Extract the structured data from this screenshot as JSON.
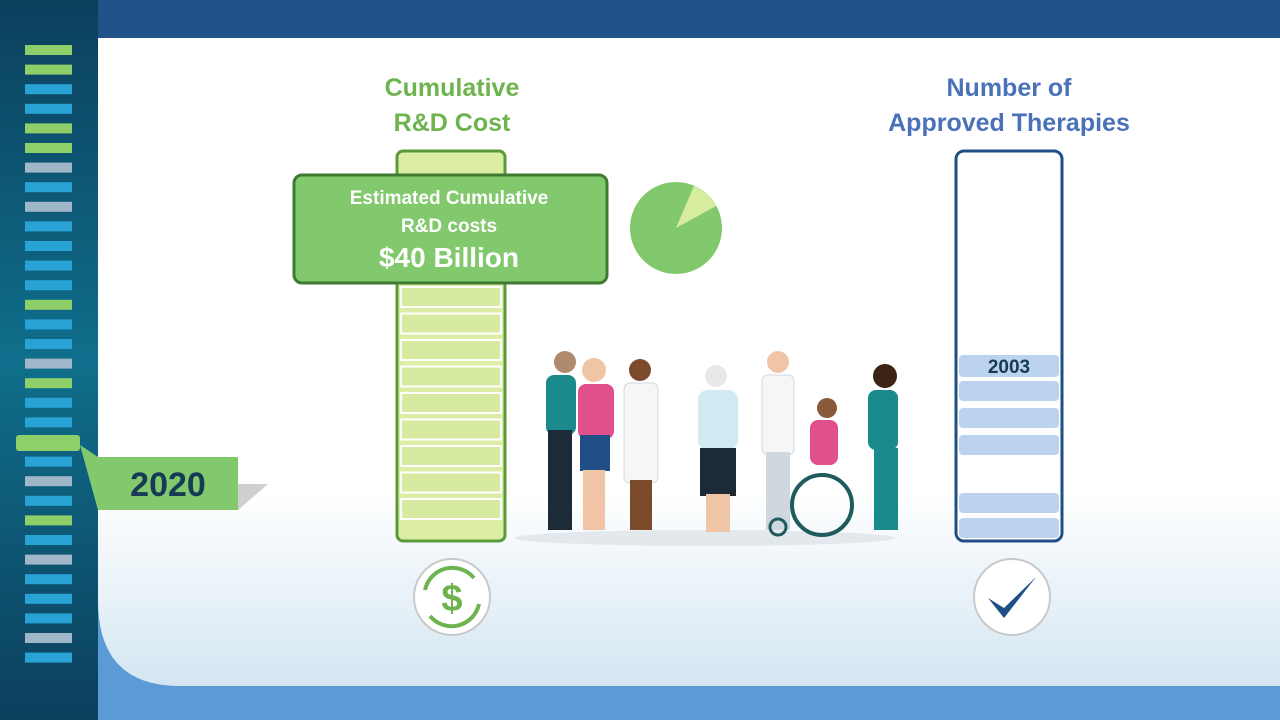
{
  "left_column": {
    "title": [
      "Cumulative",
      "R&D Cost"
    ]
  },
  "callout": {
    "lines": [
      "Estimated Cumulative",
      "R&D costs"
    ],
    "amount": "$40 Billion"
  },
  "right_column": {
    "title": [
      "Number of",
      "Approved Therapies"
    ],
    "label": "2003"
  },
  "timeline": {
    "year": "2020"
  }
}
